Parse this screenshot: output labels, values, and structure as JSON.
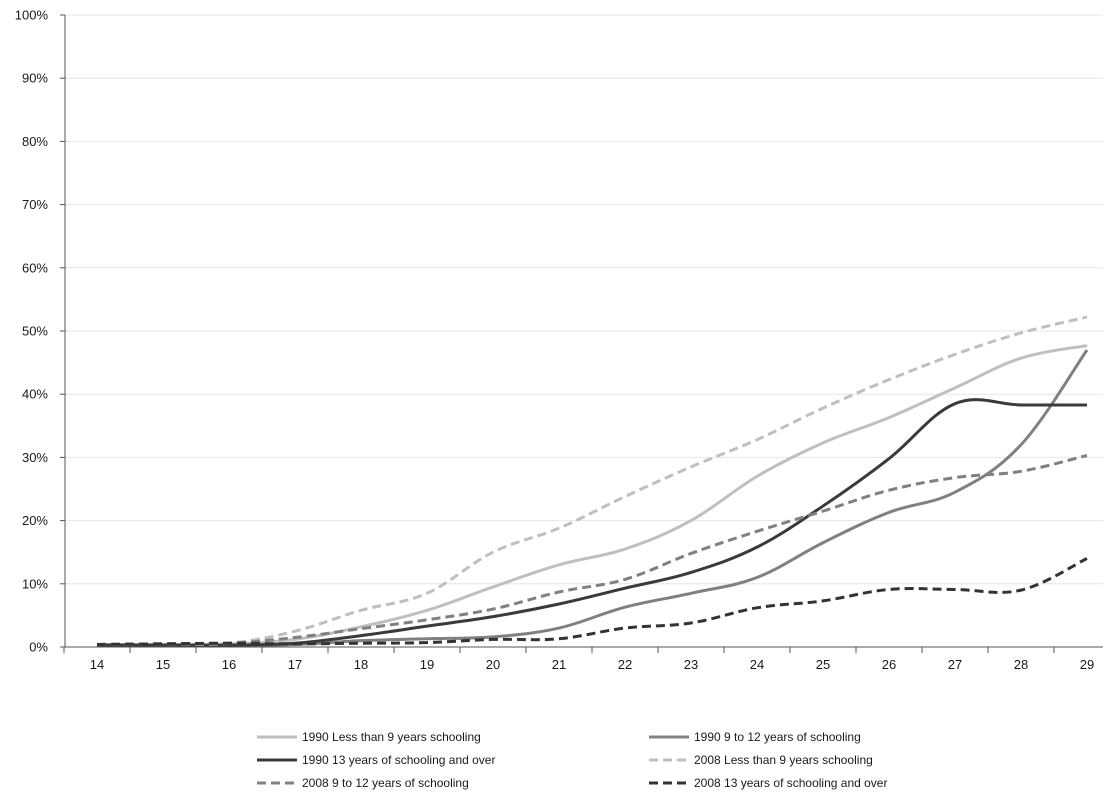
{
  "chart_data": {
    "type": "line",
    "title": "",
    "xlabel": "",
    "ylabel": "",
    "x": [
      14,
      15,
      16,
      17,
      18,
      19,
      20,
      21,
      22,
      23,
      24,
      25,
      26,
      27,
      28,
      29
    ],
    "ylim": [
      0,
      100
    ],
    "y_ticks": [
      "0%",
      "10%",
      "20%",
      "30%",
      "40%",
      "50%",
      "60%",
      "70%",
      "80%",
      "90%",
      "100%"
    ],
    "grid": "horizontal",
    "legend_position": "bottom",
    "series": [
      {
        "name": "1990 Less than 9 years schooling",
        "color": "#bfbfbf",
        "dash": "solid",
        "values": [
          0.4,
          0.4,
          0.5,
          1.2,
          3.2,
          5.8,
          9.5,
          13.0,
          15.5,
          20.0,
          27.0,
          32.3,
          36.3,
          41.0,
          45.7,
          47.7
        ]
      },
      {
        "name": "1990 9 to 12 years of schooling",
        "color": "#808080",
        "dash": "solid",
        "values": [
          0.3,
          0.3,
          0.3,
          0.4,
          1.0,
          1.3,
          1.6,
          3.0,
          6.3,
          8.5,
          11.0,
          16.5,
          21.3,
          24.5,
          32.0,
          47.0
        ]
      },
      {
        "name": "1990 13 years of schooling and over",
        "color": "#3a3a3a",
        "dash": "solid",
        "values": [
          0.3,
          0.3,
          0.3,
          0.6,
          1.8,
          3.3,
          4.8,
          6.8,
          9.3,
          11.8,
          15.8,
          22.3,
          29.8,
          38.5,
          38.3,
          38.3
        ]
      },
      {
        "name": "2008 Less than 9 years schooling",
        "color": "#bfbfbf",
        "dash": "dashed",
        "values": [
          0.4,
          0.5,
          0.6,
          2.5,
          5.8,
          8.5,
          15.0,
          18.8,
          23.8,
          28.5,
          32.8,
          37.8,
          42.3,
          46.3,
          49.7,
          52.2
        ]
      },
      {
        "name": "2008 9 to 12 years of schooling",
        "color": "#808080",
        "dash": "dashed",
        "values": [
          0.4,
          0.5,
          0.6,
          1.5,
          2.9,
          4.3,
          6.0,
          8.7,
          10.7,
          14.8,
          18.3,
          21.5,
          24.8,
          26.8,
          27.8,
          30.3
        ]
      },
      {
        "name": "2008 13 years of schooling and over",
        "color": "#333333",
        "dash": "dashed",
        "values": [
          0.4,
          0.5,
          0.6,
          0.5,
          0.6,
          0.7,
          1.2,
          1.3,
          3.0,
          3.8,
          6.2,
          7.3,
          9.1,
          9.1,
          9.0,
          14.0
        ]
      }
    ]
  }
}
